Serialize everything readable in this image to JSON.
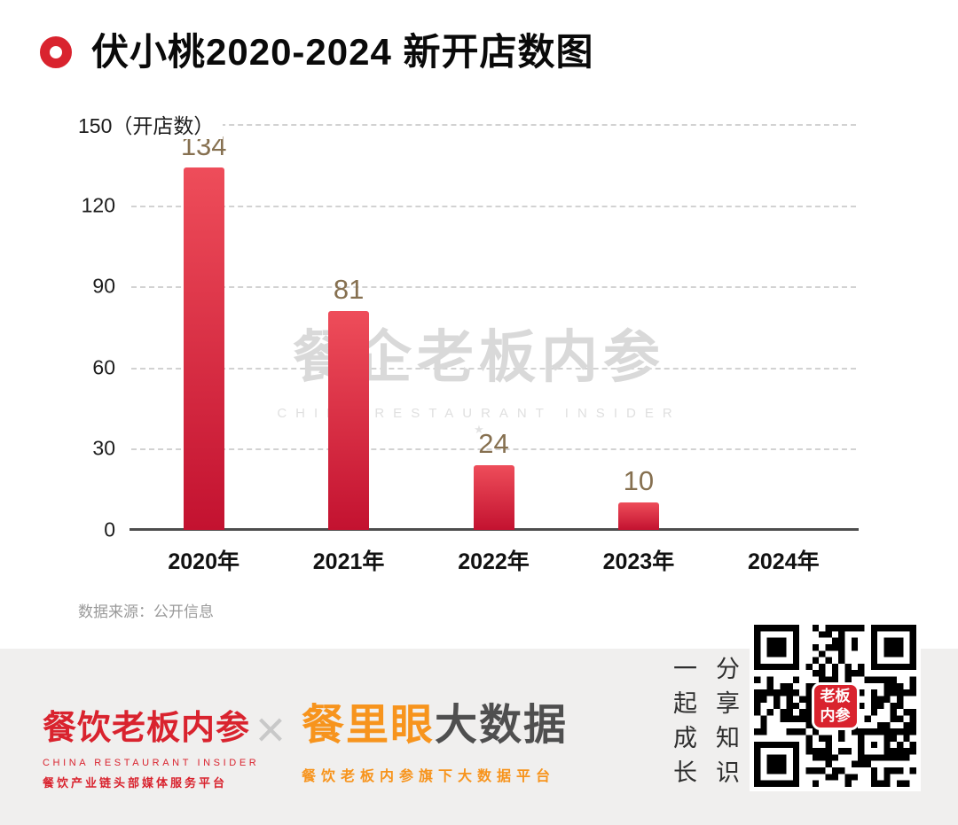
{
  "header": {
    "title": "伏小桃2020-2024 新开店数图"
  },
  "chart_data": {
    "type": "bar",
    "title": "伏小桃2020-2024 新开店数图",
    "categories": [
      "2020年",
      "2021年",
      "2022年",
      "2023年",
      "2024年"
    ],
    "values": [
      134,
      81,
      24,
      10,
      0
    ],
    "ylabel": "开店数",
    "y_top_label": "150（开店数）",
    "yticks": [
      0,
      30,
      60,
      90,
      120,
      150
    ],
    "ylim": [
      0,
      150
    ],
    "grid": "dashed-horizontal",
    "legend": "none",
    "bar_color_top": "#ee4d5a",
    "bar_color_bottom": "#c31230",
    "value_label_color": "#867050"
  },
  "watermark": {
    "text": "餐企老板内参",
    "subtext": "CHINA RESTAURANT INSIDER"
  },
  "source_note": "数据来源：公开信息",
  "footer": {
    "brand1": {
      "name": "餐饮老板内参",
      "tagline_en": "CHINA RESTAURANT INSIDER",
      "tagline_cn": "餐饮产业链头部媒体服务平台"
    },
    "separator": "×",
    "brand2": {
      "name": "餐里眼",
      "suffix": "大数据",
      "tagline": "餐饮老板内参旗下大数据平台"
    },
    "slogan": {
      "col1": "一起成长",
      "col2": "分享知识"
    },
    "qr_badge_line1": "老板",
    "qr_badge_line2": "内参"
  },
  "colors": {
    "accent_red": "#d9232e",
    "brand_orange": "#f7941d",
    "footer_bg": "#f0efee"
  }
}
